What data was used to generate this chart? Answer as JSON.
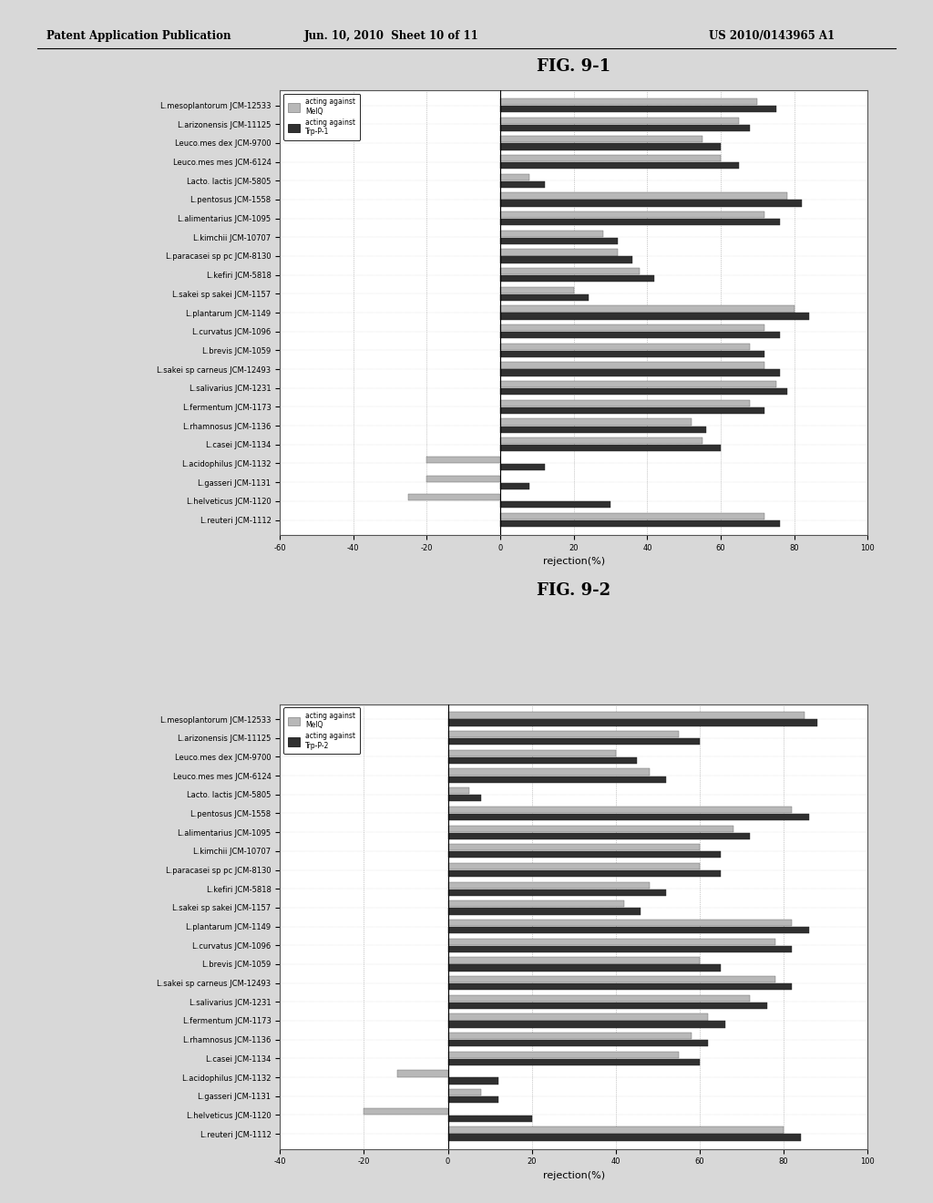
{
  "header_left": "Patent Application Publication",
  "header_center": "Jun. 10, 2010  Sheet 10 of 11",
  "header_right": "US 2010/0143965 A1",
  "fig1_title": "FIG. 9-1",
  "fig2_title": "FIG. 9-2",
  "xlabel": "rejection(%)",
  "legend1_label1": "acting against\nMeIQ",
  "legend1_label2": "acting against\nTrp-P-1",
  "legend2_label1": "acting against\nMeIQ",
  "legend2_label2": "acting against\nTrp-P-2",
  "xlim1": [
    -60,
    100
  ],
  "xlim2": [
    -40,
    100
  ],
  "xticks1": [
    -60,
    -40,
    -20,
    0,
    20,
    40,
    60,
    80,
    100
  ],
  "xticks2": [
    -40,
    -20,
    0,
    20,
    40,
    60,
    80,
    100
  ],
  "strains": [
    "L.mesoplantorum JCM-12533",
    "L.arizonensis JCM-11125",
    "Leuco.mes dex JCM-9700",
    "Leuco.mes mes JCM-6124",
    "Lacto. lactis JCM-5805",
    "L.pentosus JCM-1558",
    "L.alimentarius JCM-1095",
    "L.kimchii JCM-10707",
    "L.paracasei sp pc JCM-8130",
    "L.kefiri JCM-5818",
    "L.sakei sp sakei JCM-1157",
    "L.plantarum JCM-1149",
    "L.curvatus JCM-1096",
    "L.brevis JCM-1059",
    "L.sakei sp carneus JCM-12493",
    "L.salivarius JCM-1231",
    "L.fermentum JCM-1173",
    "L.rhamnosus JCM-1136",
    "L.casei JCM-1134",
    "L.acidophilus JCM-1132",
    "L.gasseri JCM-1131",
    "L.helveticus JCM-1120",
    "L.reuteri JCM-1112"
  ],
  "fig1_meiq": [
    70,
    65,
    55,
    60,
    8,
    78,
    72,
    28,
    32,
    38,
    20,
    80,
    72,
    68,
    72,
    75,
    68,
    52,
    55,
    -20,
    -20,
    -25,
    72
  ],
  "fig1_trpp1": [
    75,
    68,
    60,
    65,
    12,
    82,
    76,
    32,
    36,
    42,
    24,
    84,
    76,
    72,
    76,
    78,
    72,
    56,
    60,
    12,
    8,
    30,
    76
  ],
  "fig2_meiq": [
    85,
    55,
    40,
    48,
    5,
    82,
    68,
    60,
    60,
    48,
    42,
    82,
    78,
    60,
    78,
    72,
    62,
    58,
    55,
    -12,
    8,
    -20,
    80
  ],
  "fig2_trpp2": [
    88,
    60,
    45,
    52,
    8,
    86,
    72,
    65,
    65,
    52,
    46,
    86,
    82,
    65,
    82,
    76,
    66,
    62,
    60,
    12,
    12,
    20,
    84
  ],
  "color_meiq": "#b8b8b8",
  "color_trp": "#303030",
  "page_bg": "#d8d8d8"
}
